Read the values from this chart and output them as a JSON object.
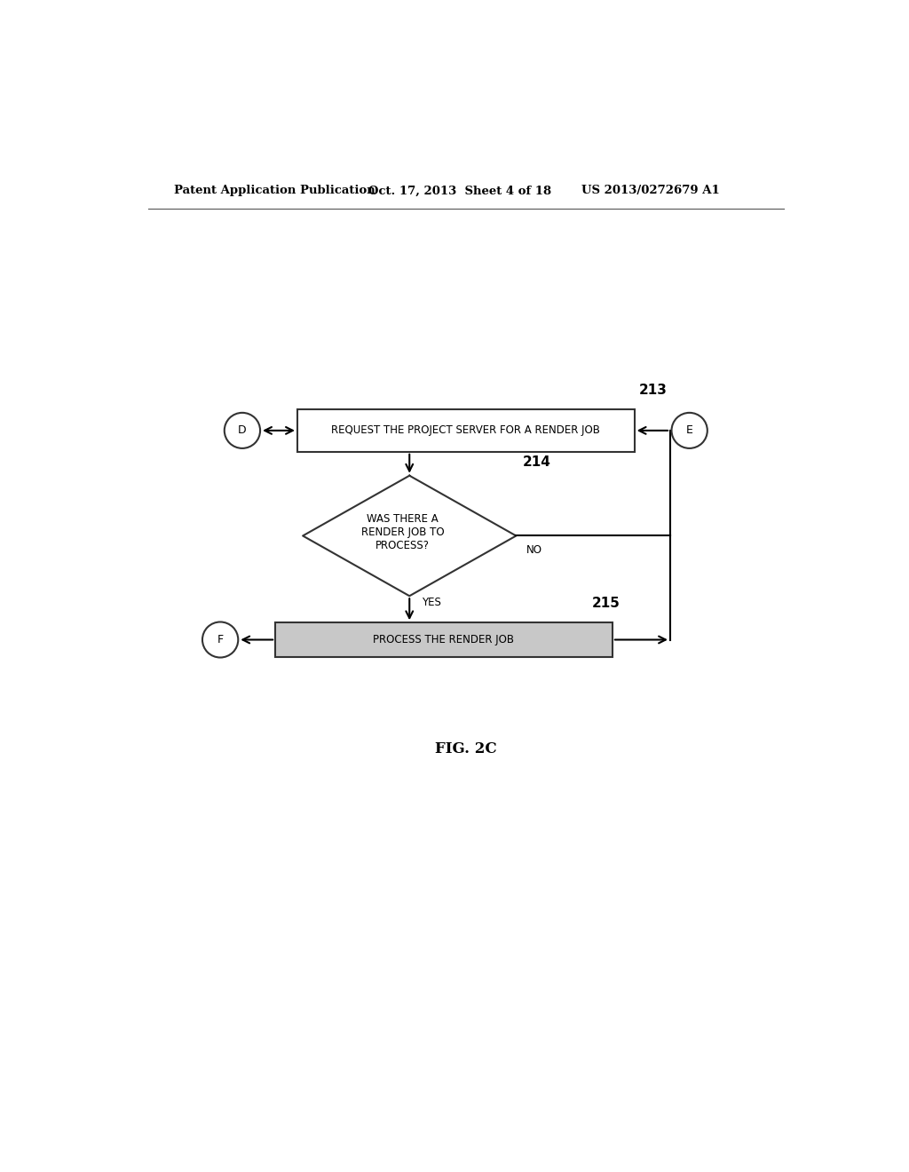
{
  "title_left": "Patent Application Publication",
  "title_mid": "Oct. 17, 2013  Sheet 4 of 18",
  "title_right": "US 2013/0272679 A1",
  "fig_label": "FIG. 2C",
  "box213_label": "213",
  "box214_label": "214",
  "box215_label": "215",
  "box213_text": "REQUEST THE PROJECT SERVER FOR A RENDER JOB",
  "diamond214_text": "WAS THERE A\nRENDER JOB TO\nPROCESS?",
  "box215_text": "PROCESS THE RENDER JOB",
  "circle_D": "D",
  "circle_E": "E",
  "circle_F": "F",
  "no_label": "NO",
  "yes_label": "YES",
  "bg_color": "#ffffff",
  "box_color": "#ffffff",
  "box215_fill": "#c8c8c8",
  "box_edge_color": "#333333",
  "text_color": "#000000",
  "arrow_color": "#000000",
  "line_width": 1.5,
  "font_size_header": 9.5,
  "font_size_body": 8.5,
  "font_size_label": 11,
  "font_size_circle": 9,
  "font_size_edge_label": 8.5
}
